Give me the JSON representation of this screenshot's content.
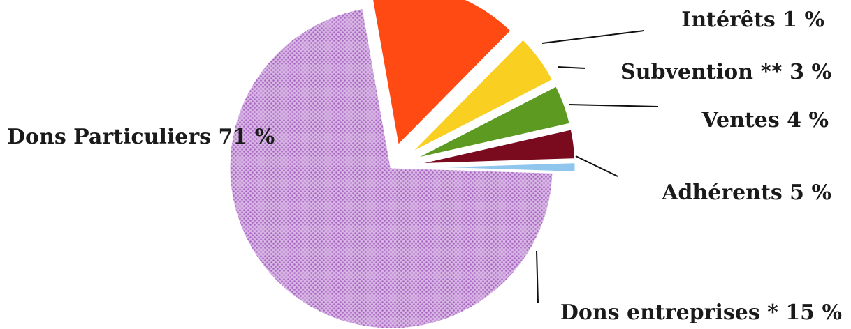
{
  "chart_data": {
    "type": "pie",
    "slices": [
      {
        "label": "Dons entreprises * 15 %",
        "value": 15,
        "color": "#ff4a14"
      },
      {
        "label": "Adhérents 5 %",
        "value": 5,
        "color": "#f9cf22"
      },
      {
        "label": "Ventes 4 %",
        "value": 4,
        "color": "#5d9a22"
      },
      {
        "label": "Subvention ** 3 %",
        "value": 3,
        "color": "#7a0a1e"
      },
      {
        "label": "Intérêts 1 %",
        "value": 1,
        "color": "#8fc6ee"
      },
      {
        "label": "Dons Particuliers 71 %",
        "value": 71,
        "color": "#c596d8",
        "pattern": "dotted"
      }
    ],
    "legend": "none"
  }
}
